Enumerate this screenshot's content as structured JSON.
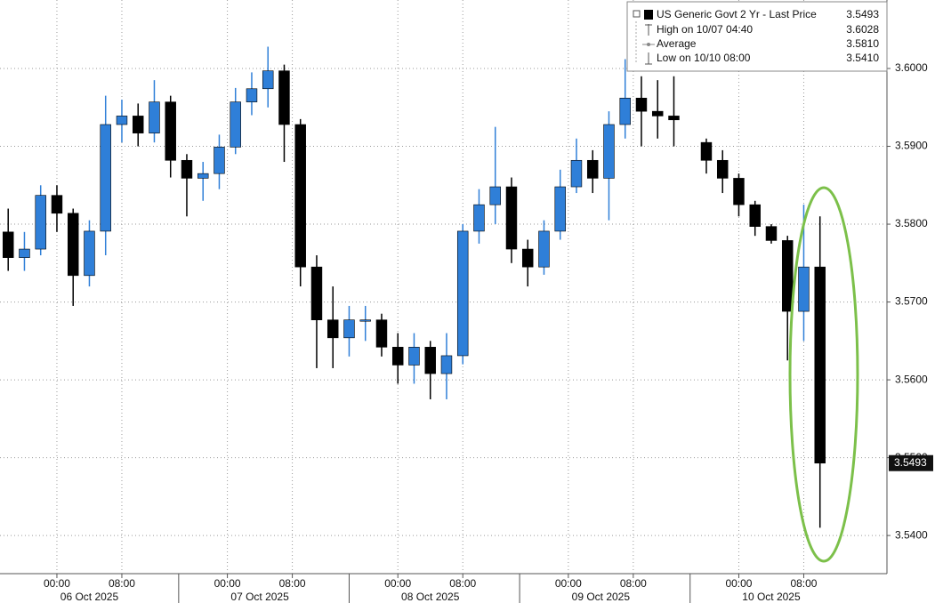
{
  "chart_data": {
    "type": "candlestick",
    "x": [
      -6,
      -4,
      -2,
      0,
      2,
      4,
      6,
      8,
      10,
      12,
      14,
      16,
      18,
      20,
      22,
      24,
      26,
      28,
      30,
      32,
      34,
      36,
      38,
      40,
      42,
      44,
      46,
      48,
      50,
      52,
      54,
      56,
      58,
      60,
      62,
      64,
      66,
      68,
      70,
      72,
      74,
      76,
      80,
      82,
      84,
      86,
      88,
      90,
      92,
      94
    ],
    "open": [
      3.579,
      3.5757,
      3.5768,
      3.5837,
      3.5814,
      3.5734,
      3.5791,
      3.5928,
      3.5939,
      3.5917,
      3.5957,
      3.5882,
      3.5859,
      3.5865,
      3.5899,
      3.5957,
      3.5974,
      3.5997,
      3.5928,
      3.5745,
      3.5677,
      3.5654,
      3.5677,
      3.5677,
      3.5642,
      3.5619,
      3.5642,
      3.5608,
      3.5631,
      3.5791,
      3.5825,
      3.5848,
      3.5768,
      3.5745,
      3.5791,
      3.5848,
      3.5882,
      3.5859,
      3.5928,
      3.5962,
      3.5945,
      3.5939,
      3.5905,
      3.5882,
      3.5859,
      3.5825,
      3.5797,
      3.5779,
      3.5688,
      3.5745
    ],
    "high": [
      3.582,
      3.579,
      3.585,
      3.585,
      3.582,
      3.5805,
      3.5965,
      3.596,
      3.5955,
      3.5985,
      3.5965,
      3.589,
      3.588,
      3.5915,
      3.5975,
      3.5995,
      3.6028,
      3.6005,
      3.5935,
      3.576,
      3.572,
      3.5695,
      3.5695,
      3.5685,
      3.566,
      3.566,
      3.565,
      3.566,
      3.58,
      3.5845,
      3.5925,
      3.586,
      3.578,
      3.5805,
      3.587,
      3.591,
      3.5895,
      3.5945,
      3.6012,
      3.599,
      3.5985,
      3.599,
      3.591,
      3.5895,
      3.5865,
      3.583,
      3.58,
      3.5785,
      3.5825,
      3.581
    ],
    "low": [
      3.574,
      3.574,
      3.576,
      3.579,
      3.5695,
      3.572,
      3.576,
      3.5905,
      3.59,
      3.5905,
      3.586,
      3.581,
      3.583,
      3.5845,
      3.589,
      3.594,
      3.595,
      3.588,
      3.572,
      3.5615,
      3.5615,
      3.563,
      3.565,
      3.563,
      3.5595,
      3.5595,
      3.5575,
      3.5575,
      3.562,
      3.5775,
      3.58,
      3.575,
      3.572,
      3.5735,
      3.578,
      3.584,
      3.584,
      3.5805,
      3.591,
      3.59,
      3.591,
      3.59,
      3.5865,
      3.584,
      3.581,
      3.5785,
      3.5775,
      3.5625,
      3.565,
      3.541
    ],
    "close": [
      3.5757,
      3.5768,
      3.5837,
      3.5814,
      3.5734,
      3.5791,
      3.5928,
      3.5939,
      3.5917,
      3.5957,
      3.5882,
      3.5859,
      3.5865,
      3.5899,
      3.5957,
      3.5974,
      3.5997,
      3.5928,
      3.5745,
      3.5677,
      3.5654,
      3.5677,
      3.5677,
      3.5642,
      3.5619,
      3.5642,
      3.5608,
      3.5631,
      3.5791,
      3.5825,
      3.5848,
      3.5768,
      3.5745,
      3.5791,
      3.5848,
      3.5882,
      3.5859,
      3.5928,
      3.5962,
      3.5945,
      3.5939,
      3.5934,
      3.5882,
      3.5859,
      3.5825,
      3.5797,
      3.5779,
      3.5688,
      3.5745,
      3.5493
    ],
    "up_color": "#2f7fd8",
    "down_color": "#000000",
    "xlim": [
      -7.01,
      102.25
    ],
    "xticks": [
      {
        "value": 0,
        "label": "00:00"
      },
      {
        "value": 8,
        "label": "08:00"
      },
      {
        "value": 21,
        "label": "00:00"
      },
      {
        "value": 29,
        "label": "08:00"
      },
      {
        "value": 42,
        "label": "00:00"
      },
      {
        "value": 50,
        "label": "08:00"
      },
      {
        "value": 63,
        "label": "00:00"
      },
      {
        "value": 71,
        "label": "08:00"
      },
      {
        "value": 84,
        "label": "00:00"
      },
      {
        "value": 92,
        "label": "08:00"
      }
    ],
    "date_labels": [
      {
        "value": 4,
        "label": "06 Oct 2025"
      },
      {
        "value": 25,
        "label": "07 Oct 2025"
      },
      {
        "value": 46,
        "label": "08 Oct 2025"
      },
      {
        "value": 67,
        "label": "09 Oct 2025"
      },
      {
        "value": 88,
        "label": "10 Oct 2025"
      }
    ],
    "ylim": [
      3.5351,
      3.6088
    ],
    "yticks": [
      {
        "value": 3.54,
        "label": "3.5400"
      },
      {
        "value": 3.55,
        "label": "3.5500"
      },
      {
        "value": 3.56,
        "label": "3.5600"
      },
      {
        "value": 3.57,
        "label": "3.5700"
      },
      {
        "value": 3.58,
        "label": "3.5800"
      },
      {
        "value": 3.59,
        "label": "3.5900"
      },
      {
        "value": 3.6,
        "label": "3.6000"
      }
    ],
    "grid": true,
    "last_price": {
      "value": 3.5493,
      "label": "3.5493"
    },
    "legend": [
      {
        "text": "US Generic Govt 2 Yr - Last Price",
        "value": "3.5493"
      },
      {
        "text": "High on 10/07 04:40",
        "value": "3.6028"
      },
      {
        "text": "Average",
        "value": "3.5810"
      },
      {
        "text": "Low on 10/10 08:00",
        "value": "3.5410"
      }
    ]
  }
}
